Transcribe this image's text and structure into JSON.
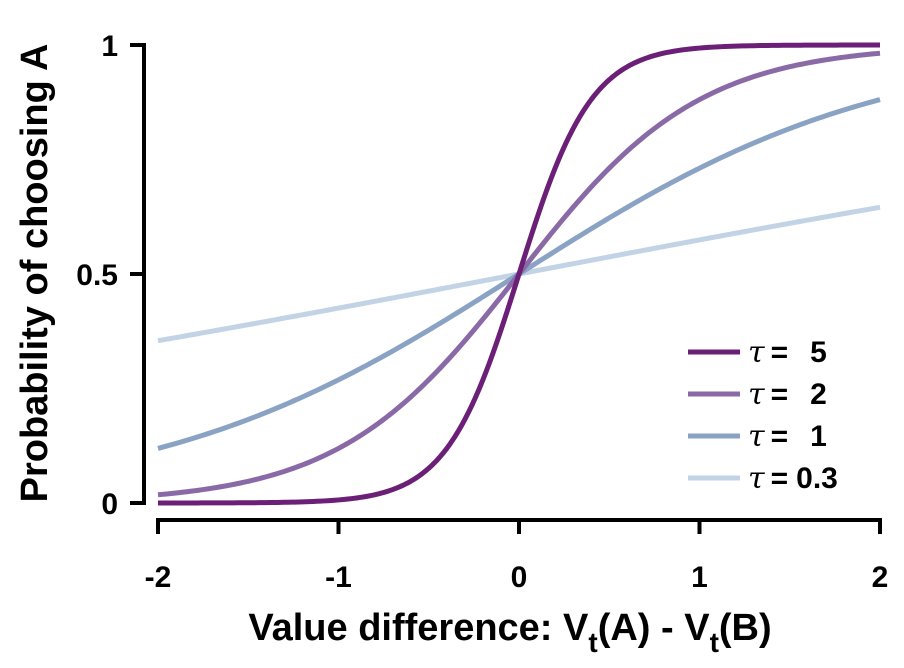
{
  "chart_data": {
    "type": "line",
    "title": "",
    "xlabel": {
      "prefix": "Value difference: V",
      "sub1": "t",
      "middle": "(A) - V",
      "sub2": "t",
      "suffix": "(B)"
    },
    "ylabel": "Probability of choosing A",
    "xlim": [
      -2,
      2
    ],
    "ylim": [
      0,
      1
    ],
    "xticks": [
      {
        "value": -2,
        "label": "-2"
      },
      {
        "value": -1,
        "label": "-1"
      },
      {
        "value": 0,
        "label": "0"
      },
      {
        "value": 1,
        "label": "1"
      },
      {
        "value": 2,
        "label": "2"
      }
    ],
    "yticks": [
      {
        "value": 0,
        "label": "0"
      },
      {
        "value": 0.5,
        "label": "0.5"
      },
      {
        "value": 1,
        "label": "1"
      }
    ],
    "grid": false,
    "legend_position": "bottom-right",
    "function": "logistic: p = 1 / (1 + exp(-tau * x))",
    "x": [
      -2,
      -1.5,
      -1,
      -0.75,
      -0.5,
      -0.25,
      0,
      0.25,
      0.5,
      0.75,
      1,
      1.5,
      2
    ],
    "series": [
      {
        "name": "5",
        "tau": 5,
        "color": "#6b1f77",
        "values": [
          0.0,
          0.0006,
          0.0067,
          0.023,
          0.0759,
          0.2227,
          0.5,
          0.7773,
          0.9241,
          0.977,
          0.9933,
          0.9994,
          1.0
        ]
      },
      {
        "name": "2",
        "tau": 2,
        "color": "#8a6aa6",
        "values": [
          0.018,
          0.047,
          0.119,
          0.182,
          0.269,
          0.378,
          0.5,
          0.622,
          0.731,
          0.818,
          0.881,
          0.953,
          0.982
        ]
      },
      {
        "name": "1",
        "tau": 1,
        "color": "#8aa3c4",
        "values": [
          0.119,
          0.182,
          0.269,
          0.321,
          0.378,
          0.438,
          0.5,
          0.562,
          0.622,
          0.679,
          0.731,
          0.818,
          0.881
        ]
      },
      {
        "name": "0.3",
        "tau": 0.3,
        "color": "#c3d3e6",
        "values": [
          0.354,
          0.389,
          0.426,
          0.444,
          0.463,
          0.481,
          0.5,
          0.519,
          0.537,
          0.556,
          0.574,
          0.611,
          0.646
        ]
      }
    ],
    "legend": {
      "symbol": "τ",
      "equals": "="
    }
  }
}
